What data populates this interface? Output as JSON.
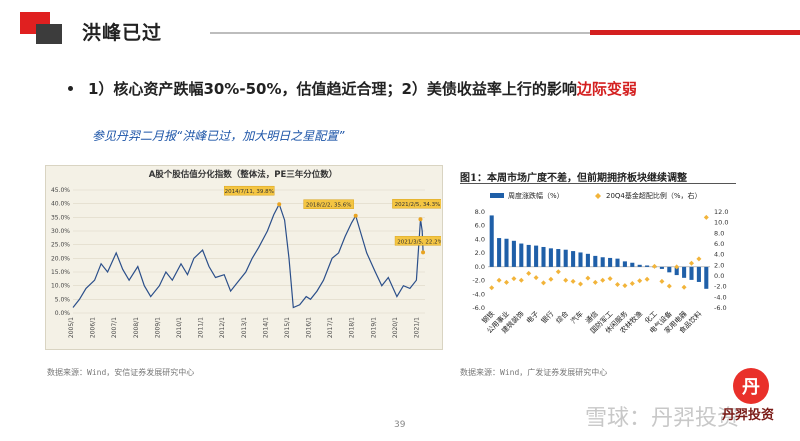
{
  "header": {
    "title": "洪峰已过"
  },
  "bullet": {
    "main": "1）核心资产跌幅30%-50%，估值趋近合理；2）美债收益率上行的影响",
    "highlight": "边际变弱"
  },
  "reference": "参见丹羿二月报“洪峰已过，加大明日之星配置”",
  "left_source": "数据来源：Wind，安信证券发展研究中心",
  "right_source": "数据来源：Wind，广发证券发展研究中心",
  "page_number": "39",
  "watermark": "雪球：丹羿投资",
  "brand": {
    "logo_char": "丹",
    "name": "丹羿投资"
  },
  "colors": {
    "accent_red": "#d42020",
    "bar_blue": "#1f5fa8",
    "dot_orange": "#f2b43a",
    "line_blue": "#2b4f8a"
  },
  "chart_data": [
    {
      "type": "line",
      "title": "A股个股估值分化指数（整体法，PE三年分位数）",
      "ylim": [
        0,
        45
      ],
      "y_ticks": [
        "0.0%",
        "5.0%",
        "10.0%",
        "15.0%",
        "20.0%",
        "25.0%",
        "30.0%",
        "35.0%",
        "40.0%",
        "45.0%"
      ],
      "x_ticks": [
        "2005/1",
        "2006/1",
        "2007/1",
        "2008/1",
        "2009/1",
        "2010/1",
        "2011/1",
        "2012/1",
        "2013/1",
        "2014/1",
        "2015/1",
        "2016/1",
        "2017/1",
        "2018/1",
        "2019/1",
        "2020/1",
        "2021/1"
      ],
      "x_range": [
        2005.0,
        2021.3
      ],
      "series": [
        {
          "x": [
            2005.0,
            2005.3,
            2005.6,
            2006.0,
            2006.3,
            2006.6,
            2007.0,
            2007.3,
            2007.6,
            2008.0,
            2008.3,
            2008.6,
            2009.0,
            2009.3,
            2009.6,
            2010.0,
            2010.3,
            2010.6,
            2011.0,
            2011.3,
            2011.6,
            2012.0,
            2012.3,
            2012.6,
            2013.0,
            2013.3,
            2013.6,
            2014.0,
            2014.3,
            2014.55,
            2014.8,
            2015.0,
            2015.2,
            2015.5,
            2015.8,
            2016.0,
            2016.3,
            2016.6,
            2017.0,
            2017.3,
            2017.6,
            2017.9,
            2018.09,
            2018.3,
            2018.6,
            2019.0,
            2019.3,
            2019.6,
            2020.0,
            2020.3,
            2020.6,
            2020.9,
            2021.09,
            2021.17,
            2021.21
          ],
          "y": [
            2,
            5,
            9,
            12,
            18,
            15,
            22,
            16,
            12,
            17,
            10,
            6,
            10,
            15,
            12,
            18,
            14,
            20,
            23,
            17,
            13,
            14,
            8,
            11,
            15,
            20,
            24,
            30,
            36,
            39.8,
            34,
            20,
            2,
            3,
            6,
            5,
            8,
            12,
            20,
            22,
            28,
            33,
            35.6,
            30,
            22,
            15,
            10,
            13,
            6,
            10,
            9,
            12,
            34.3,
            30,
            22.2
          ]
        }
      ],
      "annotations": [
        "2014/7/11, 39.8%",
        "2018/2/2, 35.6%",
        "2021/2/5, 34.3%",
        "2021/3/5, 22.2%"
      ]
    },
    {
      "type": "bar",
      "title": "图1：本周市场广度不差，但前期拥挤板块继续调整",
      "series": [
        {
          "name": "周度涨跌幅（%）",
          "axis": "left",
          "values": [
            7.5,
            4.2,
            4.1,
            3.8,
            3.4,
            3.2,
            3.1,
            2.9,
            2.7,
            2.6,
            2.5,
            2.3,
            2.1,
            1.9,
            1.6,
            1.4,
            1.3,
            1.2,
            0.8,
            0.6,
            0.3,
            0.2,
            -0.1,
            -0.3,
            -0.8,
            -1.2,
            -1.6,
            -1.9,
            -2.2,
            -3.2
          ]
        },
        {
          "name": "20Q4基金超配比例（%，右）",
          "axis": "right",
          "values": [
            -2.2,
            -0.8,
            -1.2,
            -0.5,
            -0.8,
            0.5,
            -0.3,
            -1.3,
            -0.6,
            0.8,
            -0.8,
            -1.0,
            -1.5,
            -0.4,
            -1.2,
            -0.8,
            -0.5,
            -1.6,
            -1.8,
            -1.4,
            -0.9,
            -0.6,
            1.8,
            -1.0,
            -1.9,
            1.7,
            -2.1,
            2.4,
            3.2,
            11.0
          ]
        }
      ],
      "category_labels": [
        "钢铁",
        "公用事业",
        "建筑装饰",
        "电子",
        "银行",
        "综合",
        "汽车",
        "通信",
        "国防军工",
        "休闲服务",
        "农林牧渔",
        "化工",
        "电气设备",
        "家用电器",
        "食品饮料"
      ],
      "left_axis": {
        "ylim": [
          -6,
          8
        ],
        "ticks": [
          "-6.0",
          "-4.0",
          "-2.0",
          "0.0",
          "2.0",
          "4.0",
          "6.0",
          "8.0"
        ]
      },
      "right_axis": {
        "ylim": [
          -6,
          12
        ],
        "ticks": [
          "-6.0",
          "-4.0",
          "-2.0",
          "0.0",
          "2.0",
          "4.0",
          "6.0",
          "8.0",
          "10.0",
          "12.0"
        ]
      },
      "legend_placement": "top"
    }
  ]
}
